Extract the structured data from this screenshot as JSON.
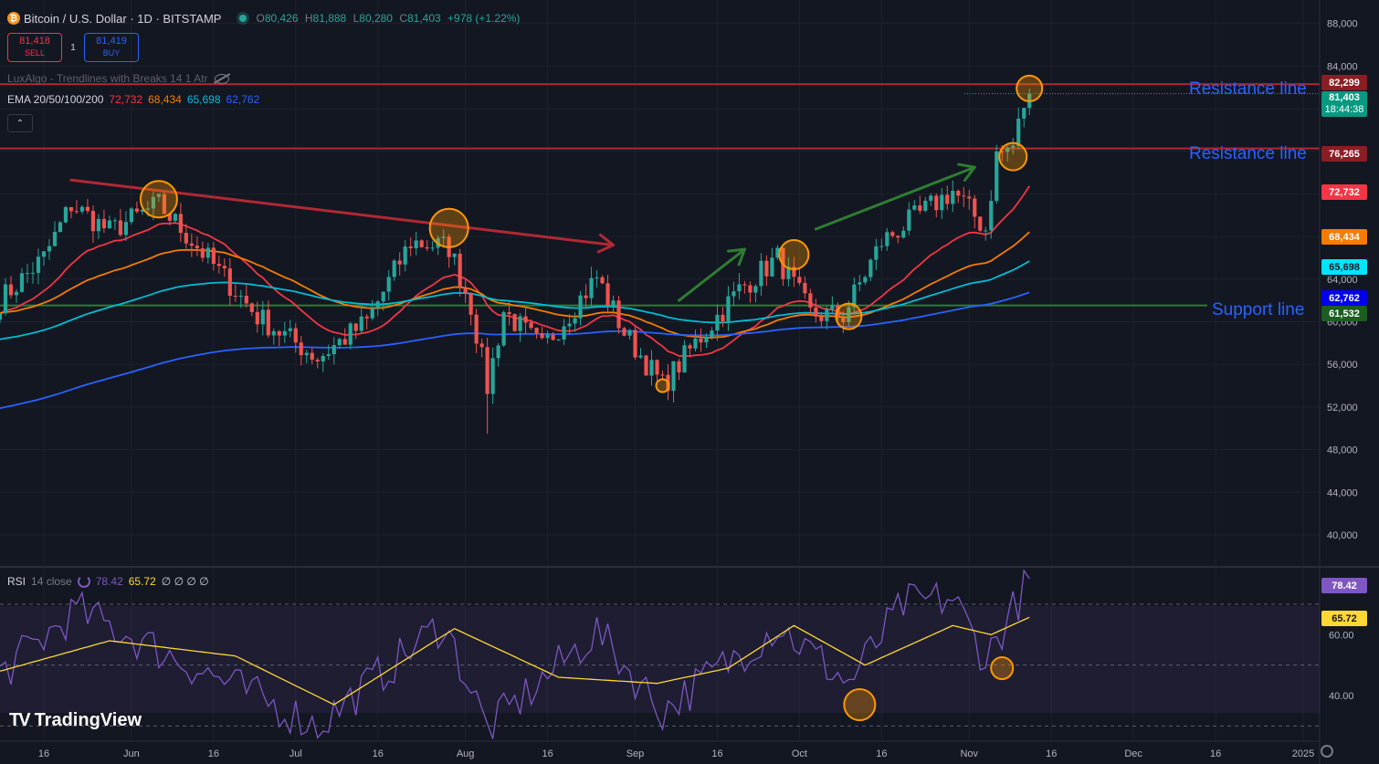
{
  "header": {
    "logo_glyph": "₿",
    "symbol": "Bitcoin / U.S. Dollar · 1D · BITSTAMP",
    "open_label": "O",
    "open": "80,426",
    "high_label": "H",
    "high": "81,888",
    "low_label": "L",
    "low": "80,280",
    "close_label": "C",
    "close": "81,403",
    "change": "+978 (+1.22%)"
  },
  "trade": {
    "sell_price": "81,418",
    "sell_label": "SELL",
    "qty": "1",
    "buy_price": "81,419",
    "buy_label": "BUY"
  },
  "indicators": {
    "luxalgo": "LuxAlgo - Trendlines with Breaks 14 1 Atr",
    "ema_name": "EMA 20/50/100/200",
    "ema20": "72,732",
    "ema50": "68,434",
    "ema100": "65,698",
    "ema200": "62,762",
    "collapse_icon": "chevron-up"
  },
  "rsi_legend": {
    "name": "RSI",
    "params": "14 close",
    "rsi": "78.42",
    "ma": "65.72",
    "placeholders": "∅ ∅ ∅ ∅"
  },
  "annotations": {
    "resistance_upper": "Resistance line",
    "resistance_lower": "Resistance line",
    "support": "Support line"
  },
  "price_labels": {
    "res_upper": "82,299",
    "last": "81,403",
    "countdown": "18:44:38",
    "res_lower": "76,265",
    "ema20": "72,732",
    "ema50": "68,434",
    "ema100": "65,698",
    "ema200": "62,762",
    "support": "61,532",
    "rsi": "78.42",
    "rsi_ma": "65.72"
  },
  "colors": {
    "background": "#131722",
    "up": "#26a69a",
    "down": "#ef5350",
    "ema20": "#f23645",
    "ema50": "#f57c00",
    "ema100": "#00bcd4",
    "ema200": "#2962ff",
    "resistance": "#b22833",
    "support": "#2e7d32",
    "rsi": "#7e57c2",
    "rsi_ma": "#fdd835",
    "highlight": "#ff9800",
    "annotation": "#2962ff"
  },
  "brand": "TradingView",
  "chart_data": {
    "type": "candlestick",
    "price_axis": {
      "ticks": [
        "88,000",
        "84,000",
        "80,000",
        "76,000",
        "72,000",
        "68,000",
        "64,000",
        "60,000",
        "56,000",
        "52,000",
        "48,000",
        "44,000",
        "40,000"
      ],
      "ylim": [
        37000,
        90200
      ],
      "scale": "linear"
    },
    "rsi_axis": {
      "ticks": [
        "60.00",
        "40.00"
      ],
      "levels": [
        70,
        50,
        30
      ],
      "ylim": [
        25,
        82
      ]
    },
    "time_axis": {
      "ticks": [
        "16",
        "Jun",
        "16",
        "Jul",
        "16",
        "Aug",
        "16",
        "Sep",
        "16",
        "Oct",
        "16",
        "Nov",
        "16",
        "Dec",
        "16",
        "2025"
      ],
      "start": "2024-05-08",
      "end": "2025-01-04"
    },
    "ohlc_anchor_closes": [
      [
        "2024-05-08",
        62000
      ],
      [
        "2024-05-16",
        66000
      ],
      [
        "2024-05-21",
        71000
      ],
      [
        "2024-05-28",
        68500
      ],
      [
        "2024-06-06",
        71000
      ],
      [
        "2024-06-14",
        66500
      ],
      [
        "2024-06-24",
        60500
      ],
      [
        "2024-07-05",
        56600
      ],
      [
        "2024-07-14",
        60000
      ],
      [
        "2024-07-22",
        67500
      ],
      [
        "2024-07-29",
        67000
      ],
      [
        "2024-08-02",
        61500
      ],
      [
        "2024-08-05",
        53900
      ],
      [
        "2024-08-08",
        61000
      ],
      [
        "2024-08-15",
        57500
      ],
      [
        "2024-08-25",
        64200
      ],
      [
        "2024-08-30",
        59000
      ],
      [
        "2024-09-06",
        54000
      ],
      [
        "2024-09-12",
        58000
      ],
      [
        "2024-09-20",
        63000
      ],
      [
        "2024-09-27",
        66000
      ],
      [
        "2024-10-03",
        60700
      ],
      [
        "2024-10-09",
        60600
      ],
      [
        "2024-10-16",
        67500
      ],
      [
        "2024-10-20",
        69000
      ],
      [
        "2024-10-29",
        72300
      ],
      [
        "2024-11-04",
        68700
      ],
      [
        "2024-11-06",
        75600
      ],
      [
        "2024-11-09",
        76500
      ],
      [
        "2024-11-11",
        80400
      ],
      [
        "2024-11-12",
        81403
      ]
    ],
    "notable_extremes": [
      [
        "2024-08-05",
        "low",
        49500
      ],
      [
        "2024-11-12",
        "high",
        81888
      ]
    ],
    "series": [
      {
        "name": "EMA 20",
        "last": 72732
      },
      {
        "name": "EMA 50",
        "last": 68434
      },
      {
        "name": "EMA 100",
        "last": 65698
      },
      {
        "name": "EMA 200",
        "last": 62762
      }
    ],
    "rsi": {
      "last": 78.42,
      "ma_last": 65.72,
      "anchors": [
        [
          "2024-05-08",
          47
        ],
        [
          "2024-05-22",
          68
        ],
        [
          "2024-06-06",
          55
        ],
        [
          "2024-07-05",
          30
        ],
        [
          "2024-07-28",
          64
        ],
        [
          "2024-08-05",
          29
        ],
        [
          "2024-08-25",
          61
        ],
        [
          "2024-09-06",
          35
        ],
        [
          "2024-09-27",
          63
        ],
        [
          "2024-10-10",
          44
        ],
        [
          "2024-10-20",
          70
        ],
        [
          "2024-10-29",
          72
        ],
        [
          "2024-11-04",
          52
        ],
        [
          "2024-11-12",
          78
        ]
      ],
      "ma_anchors": [
        [
          "2024-05-08",
          48
        ],
        [
          "2024-05-28",
          58
        ],
        [
          "2024-06-20",
          53
        ],
        [
          "2024-07-08",
          37
        ],
        [
          "2024-07-30",
          62
        ],
        [
          "2024-08-18",
          46
        ],
        [
          "2024-09-05",
          44
        ],
        [
          "2024-09-18",
          49
        ],
        [
          "2024-09-30",
          63
        ],
        [
          "2024-10-13",
          50
        ],
        [
          "2024-10-29",
          63
        ],
        [
          "2024-11-05",
          60
        ],
        [
          "2024-11-12",
          65.72
        ]
      ]
    },
    "horizontal_lines": [
      {
        "name": "Resistance line",
        "price": 82299
      },
      {
        "name": "Resistance line",
        "price": 76265
      },
      {
        "name": "Support line",
        "price": 61532
      }
    ],
    "trendlines": [
      {
        "kind": "descending",
        "from": [
          "2024-05-21",
          73300
        ],
        "to": [
          "2024-08-28",
          67200
        ]
      },
      {
        "kind": "ascending",
        "from": [
          "2024-09-09",
          62000
        ],
        "to": [
          "2024-09-21",
          66800
        ]
      },
      {
        "kind": "ascending",
        "from": [
          "2024-10-04",
          68700
        ],
        "to": [
          "2024-11-02",
          74500
        ]
      }
    ],
    "highlights": [
      [
        "2024-06-06",
        71500
      ],
      [
        "2024-07-29",
        68800
      ],
      [
        "2024-09-06",
        54000
      ],
      [
        "2024-09-30",
        66300
      ],
      [
        "2024-10-10",
        60500
      ],
      [
        "2024-11-09",
        75500
      ],
      [
        "2024-11-12",
        81900
      ]
    ],
    "rsi_highlights": [
      [
        "2024-10-12",
        37
      ],
      [
        "2024-11-07",
        49
      ]
    ],
    "legend": "top-left",
    "grid": true
  }
}
